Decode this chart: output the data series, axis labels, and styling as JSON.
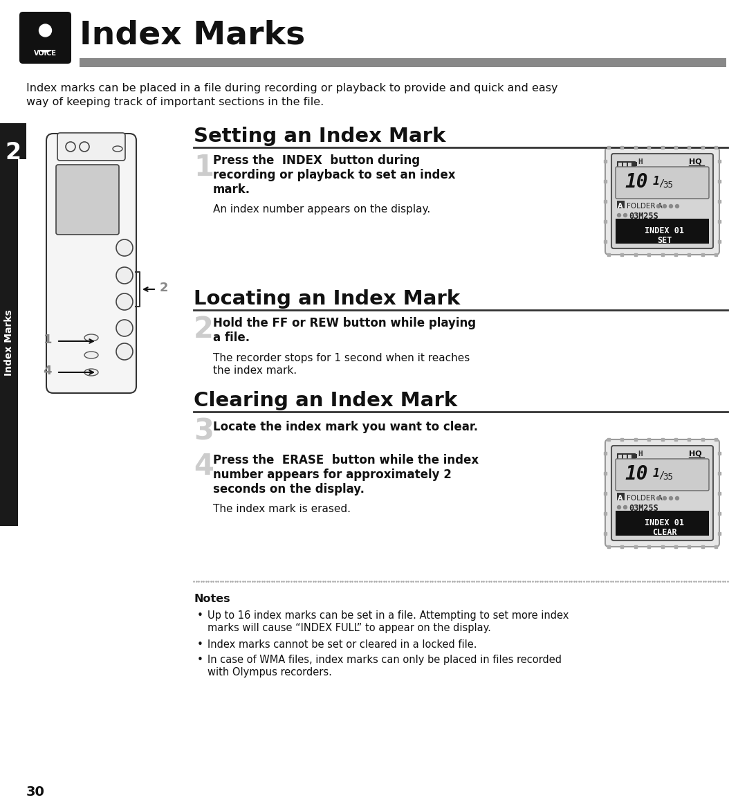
{
  "title": "Index Marks",
  "bg_color": "#ffffff",
  "header_bar_color": "#888888",
  "sidebar_color": "#1a1a1a",
  "sidebar_text": "Index Marks",
  "sidebar_number": "2",
  "page_number": "30",
  "intro_text": "Index marks can be placed in a file during recording or playback to provide and quick and easy\nway of keeping track of important sections in the file.",
  "section1_title": "Setting an Index Mark",
  "step1_number": "1",
  "step1_bold_lines": [
    "Press the  INDEX  button during",
    "recording or playback to set an index",
    "mark."
  ],
  "step1_normal": "An index number appears on the display.",
  "section2_title": "Locating an Index Mark",
  "step2_number": "2",
  "step2_bold_lines": [
    "Hold the FF or REW button while playing",
    "a file."
  ],
  "step2_normal_lines": [
    "The recorder stops for 1 second when it reaches",
    "the index mark."
  ],
  "section3_title": "Clearing an Index Mark",
  "step3_number": "3",
  "step3_bold": "Locate the index mark you want to clear.",
  "step4_number": "4",
  "step4_bold_lines": [
    "Press the  ERASE  button while the index",
    "number appears for approximately 2",
    "seconds on the display."
  ],
  "step4_normal": "The index mark is erased.",
  "notes_title": "Notes",
  "note1_lines": [
    "Up to 16 index marks can be set in a file. Attempting to set more index",
    "marks will cause “INDEX FULL” to appear on the display."
  ],
  "note2": "Index marks cannot be set or cleared in a locked file.",
  "note3_lines": [
    "In case of WMA files, index marks can only be placed in files recorded",
    "with Olympus recorders."
  ],
  "display_bg": "#d8d8d8",
  "display_screen_bg": "#c8c8c8",
  "display_number_bg": "#cccccc",
  "display_black": "#111111",
  "display_white": "#ffffff",
  "display_border": "#555555",
  "display_dot_color": "#aaaaaa"
}
